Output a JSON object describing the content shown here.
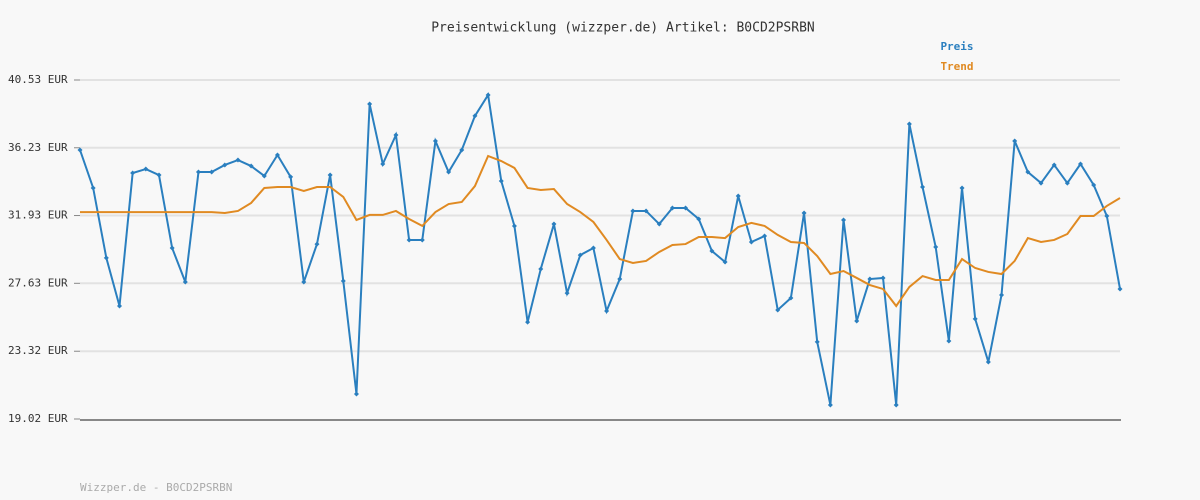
{
  "chart_data": {
    "type": "line",
    "title": "Preisentwicklung (wizzper.de) Artikel: B0CD2PSRBN",
    "footer": "Wizzper.de - B0CD2PSRBN",
    "legend": "top-right",
    "grid": true,
    "ylim": [
      19.02,
      40.53
    ],
    "yticks": [
      {
        "value": 19.02,
        "label": "19.02 EUR"
      },
      {
        "value": 23.32,
        "label": "23.32 EUR"
      },
      {
        "value": 27.63,
        "label": "27.63 EUR"
      },
      {
        "value": 31.93,
        "label": "31.93 EUR"
      },
      {
        "value": 36.23,
        "label": "36.23 EUR"
      },
      {
        "value": 40.53,
        "label": "40.53 EUR"
      }
    ],
    "series": [
      {
        "name": "Preis",
        "color": "#2a7fbf",
        "markers": true,
        "values": [
          36.09,
          33.68,
          29.24,
          26.19,
          34.63,
          34.88,
          34.5,
          29.87,
          27.71,
          34.69,
          34.69,
          35.14,
          35.45,
          35.07,
          34.44,
          35.77,
          34.38,
          27.71,
          30.12,
          34.5,
          27.78,
          20.61,
          39.01,
          35.2,
          37.04,
          30.38,
          30.38,
          36.66,
          34.69,
          36.09,
          38.25,
          39.58,
          34.12,
          31.27,
          25.17,
          28.54,
          31.39,
          27.01,
          29.42,
          29.87,
          25.87,
          27.9,
          32.22,
          32.22,
          31.39,
          32.41,
          32.41,
          31.71,
          29.68,
          28.98,
          33.17,
          30.25,
          30.63,
          25.94,
          26.7,
          32.09,
          23.91,
          19.91,
          31.65,
          25.24,
          27.9,
          27.97,
          19.91,
          37.74,
          33.74,
          29.93,
          23.97,
          33.68,
          25.37,
          22.64,
          26.89,
          36.66,
          34.69,
          33.99,
          35.14,
          33.99,
          35.2,
          33.87,
          31.9,
          27.27
        ]
      },
      {
        "name": "Trend",
        "color": "#e08a22",
        "markers": false,
        "values": [
          32.15,
          32.15,
          32.15,
          32.15,
          32.15,
          32.15,
          32.15,
          32.15,
          32.15,
          32.15,
          32.15,
          32.09,
          32.22,
          32.73,
          33.68,
          33.74,
          33.74,
          33.49,
          33.74,
          33.74,
          33.11,
          31.65,
          31.97,
          31.97,
          32.22,
          31.71,
          31.27,
          32.15,
          32.66,
          32.79,
          33.8,
          35.71,
          35.39,
          34.95,
          33.68,
          33.55,
          33.61,
          32.66,
          32.15,
          31.52,
          30.38,
          29.17,
          28.92,
          29.05,
          29.62,
          30.06,
          30.12,
          30.57,
          30.57,
          30.5,
          31.2,
          31.46,
          31.27,
          30.7,
          30.25,
          30.19,
          29.36,
          28.22,
          28.41,
          27.97,
          27.52,
          27.27,
          26.19,
          27.4,
          28.09,
          27.84,
          27.84,
          29.17,
          28.6,
          28.35,
          28.22,
          29.05,
          30.5,
          30.25,
          30.38,
          30.76,
          31.9,
          31.9,
          32.54,
          33.04
        ]
      }
    ]
  }
}
